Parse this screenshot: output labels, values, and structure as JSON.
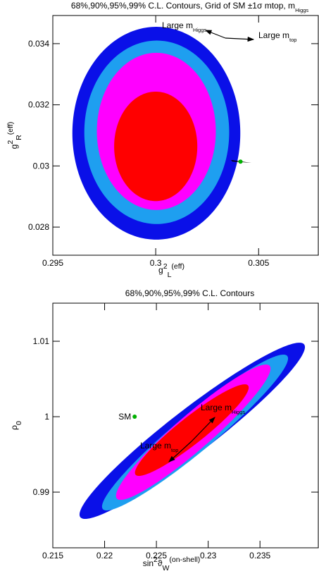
{
  "chart_data": [
    {
      "type": "contour",
      "title": [
        {
          "text": "68%,90%,95%,99% C.L. Contours, Grid of SM ±1σ mtop, m"
        },
        {
          "text": "Higgs",
          "pos": "sub"
        }
      ],
      "xlabel": [
        {
          "text": "g"
        },
        {
          "text": "2",
          "pos": "sup"
        },
        {
          "text": "L",
          "pos": "sub"
        },
        {
          "text": "(eff)",
          "pos": "sup"
        }
      ],
      "ylabel": [
        {
          "text": "g"
        },
        {
          "text": "2",
          "pos": "sup"
        },
        {
          "text": "R",
          "pos": "sub"
        },
        {
          "text": "(eff)",
          "pos": "sup"
        }
      ],
      "xlim": [
        0.295,
        0.3079
      ],
      "ylim": [
        0.02708,
        0.03492
      ],
      "xticks": [
        0.295,
        0.3,
        0.305
      ],
      "yticks": [
        0.028,
        0.03,
        0.032,
        0.034
      ],
      "contours": [
        {
          "color": "#0a10e8",
          "cx": 0.30003,
          "cy": 0.03107,
          "sx": 0.00408,
          "sy": 0.00348,
          "rho": 0
        },
        {
          "color": "#1e9ff0",
          "cx": 0.30005,
          "cy": 0.0311,
          "sx": 0.00352,
          "sy": 0.003,
          "rho": 0
        },
        {
          "color": "#ff00ff",
          "cx": 0.30003,
          "cy": 0.03113,
          "sx": 0.00289,
          "sy": 0.00257,
          "rho": 0
        },
        {
          "color": "#ff0000",
          "cx": 0.3,
          "cy": 0.03064,
          "sx": 0.00202,
          "sy": 0.00179,
          "rho": 0
        }
      ],
      "points": [
        {
          "x": 0.30412,
          "y": 0.03014,
          "color": "#00b000"
        }
      ],
      "annotations": [
        [
          {
            "text": "Large m"
          },
          {
            "text": "Higgs",
            "pos": "sub"
          }
        ],
        [
          {
            "text": "Large m"
          },
          {
            "text": "top",
            "pos": "sub"
          }
        ]
      ]
    },
    {
      "type": "contour",
      "title": [
        {
          "text": "68%,90%,95%,99% C.L. Contours"
        }
      ],
      "xlabel": [
        {
          "text": "sin"
        },
        {
          "text": "2",
          "pos": "sup"
        },
        {
          "text": "ϑ"
        },
        {
          "text": "W",
          "pos": "sub"
        },
        {
          "text": "(on-shell)",
          "pos": "sup"
        }
      ],
      "ylabel": [
        {
          "text": "ρ"
        },
        {
          "text": "0",
          "pos": "sub"
        }
      ],
      "xlim": [
        0.215,
        0.24063
      ],
      "ylim": [
        0.98262,
        1.01505
      ],
      "xticks": [
        0.215,
        0.22,
        0.225,
        0.23,
        0.235
      ],
      "yticks": [
        0.99,
        1,
        1.01
      ],
      "contours": [
        {
          "color": "#0a10e8",
          "cx": 0.22846,
          "cy": 0.99813,
          "sx": 0.01088,
          "sy": 0.01168,
          "rho": 0.95
        },
        {
          "color": "#1e9ff0",
          "cx": 0.22873,
          "cy": 0.9979,
          "sx": 0.00898,
          "sy": 0.01033,
          "rho": 0.95
        },
        {
          "color": "#ff00ff",
          "cx": 0.22856,
          "cy": 0.99794,
          "sx": 0.00746,
          "sy": 0.00897,
          "rho": 0.94
        },
        {
          "color": "#ff0000",
          "cx": 0.22842,
          "cy": 0.99822,
          "sx": 0.00549,
          "sy": 0.00607,
          "rho": 0.93
        }
      ],
      "points": [
        {
          "x": 0.2229,
          "y": 1,
          "color": "#00b000",
          "label": "SM"
        }
      ],
      "annotations": [
        [
          {
            "text": "Large m"
          },
          {
            "text": "Higgs",
            "pos": "sub"
          }
        ],
        [
          {
            "text": "Large m"
          },
          {
            "text": "top",
            "pos": "sub"
          }
        ]
      ]
    }
  ]
}
